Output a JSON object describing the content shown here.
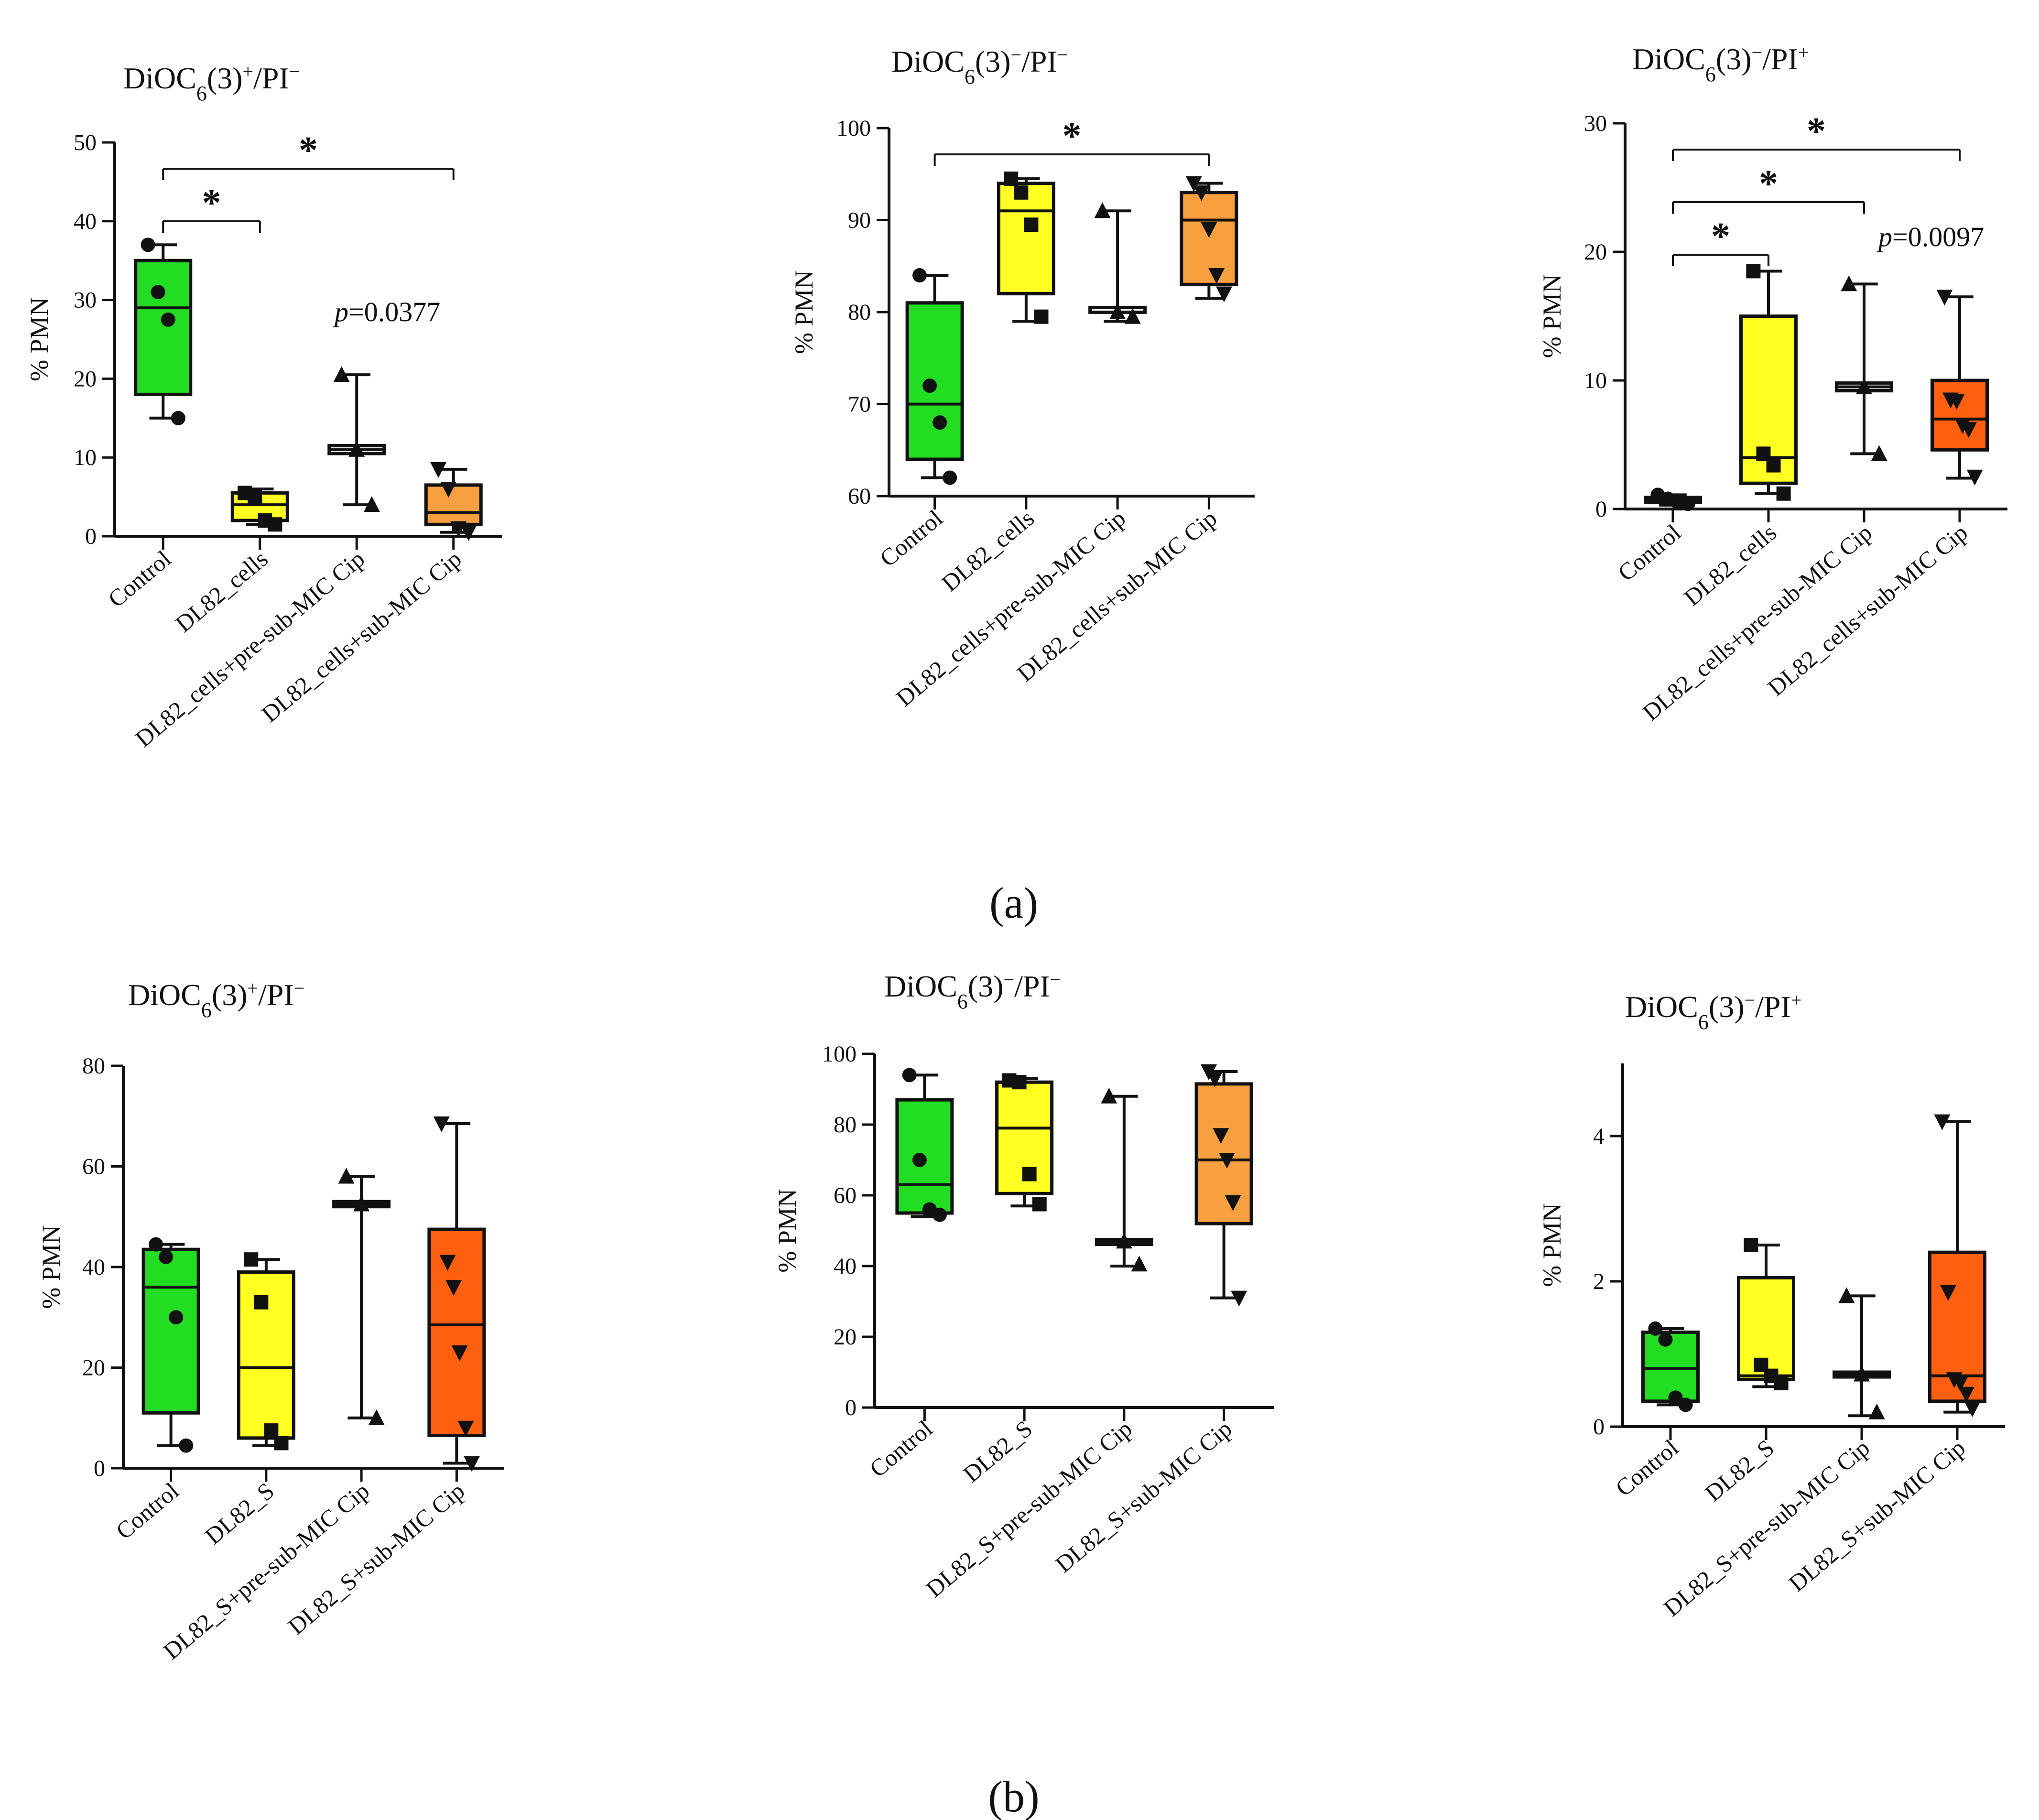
{
  "panel_labels": {
    "a": "(a)",
    "b": "(b)"
  },
  "colors": {
    "Control": "#22dd22",
    "yellow": "#ffff22",
    "pre": "#ffffff",
    "sub_a": "#f8a040",
    "sub_b": "#ff6010",
    "ink": "#111111"
  },
  "chart_data": [
    {
      "id": "a1",
      "type": "box",
      "panel": "a",
      "title": "DiOC6(3)+/PI−",
      "ylabel": "% PMN",
      "xlabel": "",
      "ylim": [
        0,
        50
      ],
      "yticks": [
        0,
        10,
        20,
        30,
        40,
        50
      ],
      "categories": [
        "Control",
        "DL82_cells",
        "DL82_cells+pre-sub-MIC Cip",
        "DL82_cells+sub-MIC Cip"
      ],
      "box_colors": [
        "#22dd22",
        "#ffff22",
        "#ffffff",
        "#f8a040"
      ],
      "marker_shapes": [
        "circle",
        "square",
        "triangle-up",
        "triangle-down"
      ],
      "boxes": [
        {
          "min": 15,
          "q1": 18,
          "median": 29,
          "q3": 35,
          "max": 37,
          "points": [
            37,
            31,
            27.5,
            15
          ]
        },
        {
          "min": 1.5,
          "q1": 2,
          "median": 4,
          "q3": 5.5,
          "max": 6,
          "points": [
            5.5,
            5,
            2,
            1.5
          ]
        },
        {
          "min": 4,
          "q1": 10.5,
          "median": 11,
          "q3": 11.5,
          "max": 20.5,
          "points": [
            20.5,
            11,
            4
          ]
        },
        {
          "min": 0.5,
          "q1": 1.5,
          "median": 3,
          "q3": 6.5,
          "max": 8.5,
          "points": [
            8.5,
            6,
            1,
            0.5
          ]
        }
      ],
      "significance": [
        {
          "from": 0,
          "to": 1,
          "label": "*"
        },
        {
          "from": 0,
          "to": 3,
          "label": "*"
        }
      ],
      "p_value": {
        "prefix": "p",
        "text": "=0.0377"
      }
    },
    {
      "id": "a2",
      "type": "box",
      "panel": "a",
      "title": "DiOC6(3)−/PI−",
      "ylabel": "% PMN",
      "xlabel": "",
      "ylim": [
        60,
        100
      ],
      "yticks": [
        60,
        70,
        80,
        90,
        100
      ],
      "categories": [
        "Control",
        "DL82_cells",
        "DL82_cells+pre-sub-MIC Cip",
        "DL82_cells+sub-MIC Cip"
      ],
      "box_colors": [
        "#22dd22",
        "#ffff22",
        "#ffffff",
        "#f8a040"
      ],
      "marker_shapes": [
        "circle",
        "square",
        "triangle-up",
        "triangle-down"
      ],
      "boxes": [
        {
          "min": 62,
          "q1": 64,
          "median": 70,
          "q3": 81,
          "max": 84,
          "points": [
            84,
            72,
            68,
            62
          ]
        },
        {
          "min": 79,
          "q1": 82,
          "median": 91,
          "q3": 94,
          "max": 94.5,
          "points": [
            94.5,
            93,
            89.5,
            79.5
          ]
        },
        {
          "min": 79,
          "q1": 80,
          "median": 80,
          "q3": 80.5,
          "max": 91,
          "points": [
            91,
            80,
            79.5
          ]
        },
        {
          "min": 81.5,
          "q1": 83,
          "median": 90,
          "q3": 93,
          "max": 94,
          "points": [
            94,
            93,
            89,
            84,
            82
          ]
        }
      ],
      "significance": [
        {
          "from": 0,
          "to": 3,
          "label": "*"
        }
      ]
    },
    {
      "id": "a3",
      "type": "box",
      "panel": "a",
      "title": "DiOC6(3)−/PI+",
      "ylabel": "% PMN",
      "xlabel": "",
      "ylim": [
        0,
        30
      ],
      "yticks": [
        0,
        10,
        20,
        30
      ],
      "categories": [
        "Control",
        "DL82_cells",
        "DL82_cells+pre-sub-MIC Cip",
        "DL82_cells+sub-MIC Cip"
      ],
      "box_colors": [
        "#22dd22",
        "#ffff22",
        "#ffffff",
        "#ff6010"
      ],
      "marker_shapes": [
        "circle",
        "square",
        "triangle-up",
        "triangle-down"
      ],
      "boxes": [
        {
          "min": 0.3,
          "q1": 0.5,
          "median": 0.7,
          "q3": 0.9,
          "max": 1.1,
          "points": [
            1.1,
            0.8,
            0.5,
            0.4
          ]
        },
        {
          "min": 1.2,
          "q1": 2,
          "median": 4,
          "q3": 15,
          "max": 18.5,
          "points": [
            18.5,
            4.3,
            3.4,
            1.2
          ]
        },
        {
          "min": 4.3,
          "q1": 9.2,
          "median": 9.5,
          "q3": 9.8,
          "max": 17.5,
          "points": [
            17.5,
            9.5,
            4.3
          ]
        },
        {
          "min": 2.4,
          "q1": 4.6,
          "median": 7,
          "q3": 10,
          "max": 16.5,
          "points": [
            16.5,
            8.5,
            8.4,
            6.5,
            6.2,
            2.5
          ]
        }
      ],
      "significance": [
        {
          "from": 0,
          "to": 1,
          "label": "*"
        },
        {
          "from": 0,
          "to": 2,
          "label": "*"
        },
        {
          "from": 0,
          "to": 3,
          "label": "*"
        }
      ],
      "p_value": {
        "prefix": "p",
        "text": "=0.0097"
      }
    },
    {
      "id": "b1",
      "type": "box",
      "panel": "b",
      "title": "DiOC6(3)+/PI−",
      "ylabel": "% PMN",
      "xlabel": "",
      "ylim": [
        0,
        80
      ],
      "yticks": [
        0,
        20,
        40,
        60,
        80
      ],
      "categories": [
        "Control",
        "DL82_S",
        "DL82_S+pre-sub-MIC Cip",
        "DL82_S+sub-MIC Cip"
      ],
      "box_colors": [
        "#22dd22",
        "#ffff22",
        "#ffffff",
        "#ff6010"
      ],
      "marker_shapes": [
        "circle",
        "square",
        "triangle-up",
        "triangle-down"
      ],
      "boxes": [
        {
          "min": 4.5,
          "q1": 11,
          "median": 36,
          "q3": 43.5,
          "max": 44.5,
          "points": [
            44.5,
            42,
            30,
            4.5
          ]
        },
        {
          "min": 4.5,
          "q1": 6,
          "median": 20,
          "q3": 39,
          "max": 41.5,
          "points": [
            41.5,
            33,
            7.5,
            5
          ]
        },
        {
          "min": 10,
          "q1": 52,
          "median": 52.5,
          "q3": 53,
          "max": 58,
          "points": [
            58,
            52.5,
            10
          ]
        },
        {
          "min": 1,
          "q1": 6.5,
          "median": 28.5,
          "q3": 47.5,
          "max": 68.5,
          "points": [
            68.5,
            41,
            36,
            23,
            8,
            1
          ]
        }
      ]
    },
    {
      "id": "b2",
      "type": "box",
      "panel": "b",
      "title": "DiOC6(3)−/PI−",
      "ylabel": "% PMN",
      "xlabel": "",
      "ylim": [
        0,
        100
      ],
      "yticks": [
        0,
        20,
        40,
        60,
        80,
        100
      ],
      "categories": [
        "Control",
        "DL82_S",
        "DL82_S+pre-sub-MIC Cip",
        "DL82_S+sub-MIC Cip"
      ],
      "box_colors": [
        "#22dd22",
        "#ffff22",
        "#ffffff",
        "#f8a040"
      ],
      "marker_shapes": [
        "circle",
        "square",
        "triangle-up",
        "triangle-down"
      ],
      "boxes": [
        {
          "min": 54,
          "q1": 55,
          "median": 63,
          "q3": 87,
          "max": 94,
          "points": [
            94,
            70,
            56,
            54.5
          ]
        },
        {
          "min": 57,
          "q1": 60.5,
          "median": 79,
          "q3": 92,
          "max": 93,
          "points": [
            92.5,
            92,
            66,
            57.5
          ]
        },
        {
          "min": 40,
          "q1": 46.5,
          "median": 47,
          "q3": 47.5,
          "max": 88,
          "points": [
            88,
            47,
            40.5
          ]
        },
        {
          "min": 31,
          "q1": 52,
          "median": 70,
          "q3": 91.5,
          "max": 95,
          "points": [
            95,
            93,
            77,
            70,
            58,
            31
          ]
        }
      ]
    },
    {
      "id": "b3",
      "type": "box",
      "panel": "b",
      "title": "DiOC6(3)−/PI+",
      "ylabel": "% PMN",
      "xlabel": "",
      "ylim": [
        0,
        5
      ],
      "yticks": [
        0,
        2,
        4
      ],
      "categories": [
        "Control",
        "DL82_S",
        "DL82_S+pre-sub-MIC Cip",
        "DL82_S+sub-MIC Cip"
      ],
      "box_colors": [
        "#22dd22",
        "#ffff22",
        "#ffffff",
        "#ff6010"
      ],
      "marker_shapes": [
        "circle",
        "square",
        "triangle-up",
        "triangle-down"
      ],
      "boxes": [
        {
          "min": 0.3,
          "q1": 0.35,
          "median": 0.8,
          "q3": 1.3,
          "max": 1.35,
          "points": [
            1.35,
            1.2,
            0.4,
            0.3
          ]
        },
        {
          "min": 0.55,
          "q1": 0.65,
          "median": 0.7,
          "q3": 2.05,
          "max": 2.5,
          "points": [
            2.5,
            0.85,
            0.7,
            0.6
          ]
        },
        {
          "min": 0.15,
          "q1": 0.7,
          "median": 0.72,
          "q3": 0.75,
          "max": 1.8,
          "points": [
            1.8,
            0.72,
            0.2
          ]
        },
        {
          "min": 0.2,
          "q1": 0.35,
          "median": 0.7,
          "q3": 2.4,
          "max": 4.2,
          "points": [
            4.2,
            1.85,
            0.65,
            0.6,
            0.45,
            0.25
          ]
        }
      ]
    }
  ]
}
